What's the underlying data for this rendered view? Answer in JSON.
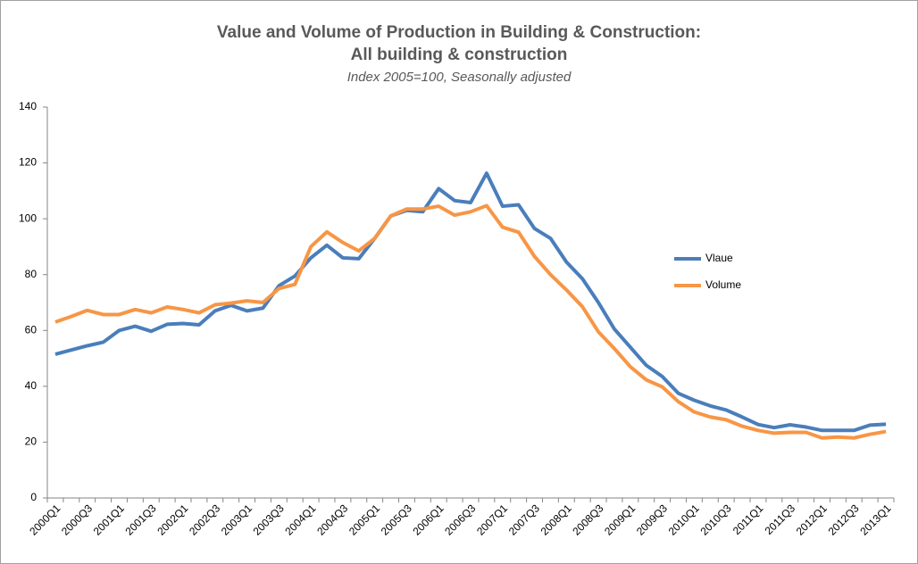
{
  "chart_data": {
    "type": "line",
    "title": "Value and Volume of Production in Building & Construction:",
    "title_line2": "All building & construction",
    "subtitle": "Index 2005=100, Seasonally adjusted",
    "categories": [
      "2000Q1",
      null,
      "2000Q3",
      null,
      "2001Q1",
      null,
      "2001Q3",
      null,
      "2002Q1",
      null,
      "2002Q3",
      null,
      "2003Q1",
      null,
      "2003Q3",
      null,
      "2004Q1",
      null,
      "2004Q3",
      null,
      "2005Q1",
      null,
      "2005Q3",
      null,
      "2006Q1",
      null,
      "2006Q3",
      null,
      "2007Q1",
      null,
      "2007Q3",
      null,
      "2008Q1",
      null,
      "2008Q3",
      null,
      "2009Q1",
      null,
      "2009Q3",
      null,
      "2010Q1",
      null,
      "2010Q3",
      null,
      "2011Q1",
      null,
      "2011Q3",
      null,
      "2012Q1",
      null,
      "2012Q3",
      null,
      "2013Q1"
    ],
    "series": [
      {
        "name": "Vlaue",
        "color": "#4a7ebb",
        "values": [
          51.5,
          53,
          54.5,
          55.8,
          60,
          61.5,
          59.7,
          62.2,
          62.5,
          62,
          67,
          69,
          67,
          68,
          76,
          79.5,
          86,
          90.5,
          86,
          85.7,
          93,
          101,
          103,
          102.5,
          110.8,
          106.5,
          105.8,
          116.3,
          104.5,
          105,
          96.5,
          93,
          84.5,
          78.5,
          70,
          60.5,
          54,
          47.5,
          43.5,
          37.5,
          35,
          33,
          31.5,
          29,
          26.3,
          25.2,
          26.2,
          25.4,
          24.2,
          24.2,
          24.2,
          26.1,
          26.4
        ]
      },
      {
        "name": "Volume",
        "color": "#f79646",
        "values": [
          63,
          65,
          67.2,
          65.7,
          65.7,
          67.5,
          66.3,
          68.4,
          67.5,
          66.3,
          69.2,
          69.8,
          70.6,
          70,
          75,
          76.5,
          90,
          95.3,
          91.5,
          88.5,
          93,
          101,
          103.5,
          103.5,
          104.5,
          101.3,
          102.5,
          104.7,
          97,
          95.2,
          86.5,
          80,
          74.5,
          68.5,
          59.5,
          53.5,
          47,
          42.3,
          39.8,
          34.5,
          30.8,
          29,
          28,
          25.7,
          24.2,
          23.2,
          23.5,
          23.5,
          21.5,
          21.8,
          21.5,
          22.8,
          23.8
        ]
      }
    ],
    "ylim": [
      0,
      140
    ],
    "yticks": [
      0,
      20,
      40,
      60,
      80,
      100,
      120,
      140
    ],
    "grid": false,
    "legend": "right"
  }
}
